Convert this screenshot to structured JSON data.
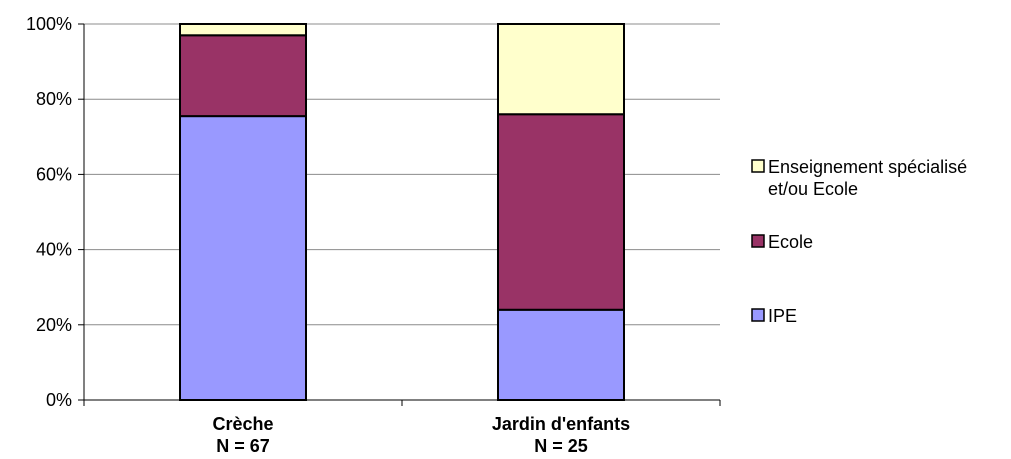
{
  "chart_data": {
    "type": "bar",
    "stacked": true,
    "percent": true,
    "categories": [
      [
        "Crèche",
        "N = 67"
      ],
      [
        "Jardin d'enfants",
        "N = 25"
      ]
    ],
    "series": [
      {
        "name": "IPE",
        "color": "#9999ff",
        "values": [
          75.5,
          24
        ]
      },
      {
        "name": "Ecole",
        "color": "#993366",
        "values": [
          21.5,
          52
        ]
      },
      {
        "name": "Enseignement spécialisé et/ou Ecole",
        "color": "#ffffcc",
        "values": [
          3,
          24
        ]
      }
    ],
    "legend_order": [
      "Enseignement spécialisé et/ou Ecole",
      "Ecole",
      "IPE"
    ],
    "legend_lines": [
      [
        "Enseignement spécialisé",
        "et/ou Ecole"
      ],
      [
        "Ecole"
      ],
      [
        "IPE"
      ]
    ],
    "ylim": [
      0,
      100
    ],
    "yticks": [
      "0%",
      "20%",
      "40%",
      "60%",
      "80%",
      "100%"
    ],
    "grid": true,
    "legend_position": "right",
    "title": "",
    "xlabel": "",
    "ylabel": ""
  }
}
